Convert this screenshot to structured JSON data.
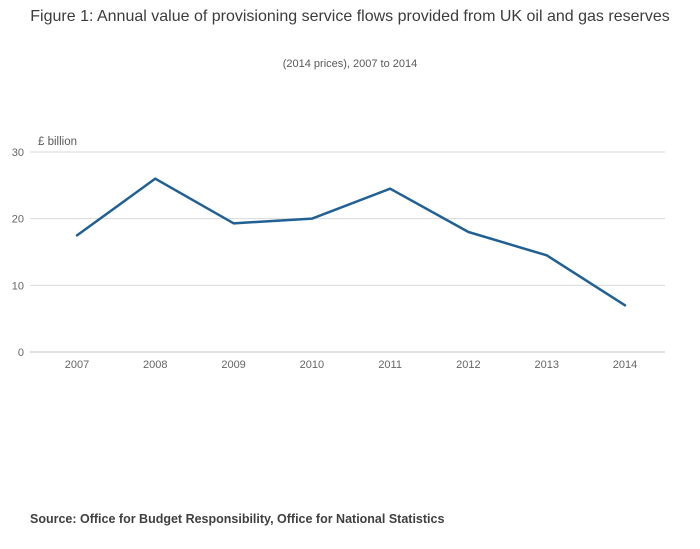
{
  "header": {
    "title": "Figure 1: Annual value of provisioning service flows provided from UK oil and gas reserves",
    "subtitle": "(2014 prices), 2007 to 2014"
  },
  "chart_data": {
    "type": "line",
    "x": [
      2007,
      2008,
      2009,
      2010,
      2011,
      2012,
      2013,
      2014
    ],
    "series": [
      {
        "name": "Annual value of provisioning service flows",
        "values": [
          17.5,
          26,
          19.3,
          20,
          24.5,
          18,
          14.5,
          7
        ]
      }
    ],
    "title": "Figure 1: Annual value of provisioning service flows provided from UK oil and gas reserves",
    "subtitle": "(2014 prices), 2007 to 2014",
    "xlabel": "",
    "ylabel": "£ billion",
    "ylim": [
      0,
      30
    ],
    "yticks": [
      0,
      10,
      20,
      30
    ],
    "grid": true,
    "legend": "none",
    "line_color": "#206095",
    "gridline_color": "#d9d9d9",
    "tick_label_color": "#666666"
  },
  "footer": {
    "source": "Source: Office for Budget Responsibility, Office for National Statistics"
  }
}
